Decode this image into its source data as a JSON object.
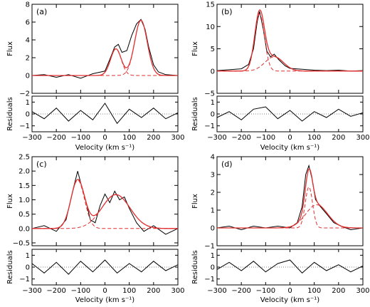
{
  "figure": {
    "panels": [
      "(a)",
      "(b)",
      "(c)",
      "(d)"
    ]
  },
  "chart_data": [
    {
      "type": "line",
      "panel_label": "(a)",
      "xlabel": "Velocity (km s⁻¹)",
      "ylabel": "Flux",
      "residual_ylabel": "Residuals",
      "xlim": [
        -300,
        300
      ],
      "ylim": [
        -2,
        8
      ],
      "residual_ylim": [
        -1.5,
        1.5
      ],
      "x_ticks": [
        "−300",
        "−200",
        "−100",
        "0",
        "100",
        "200",
        "300"
      ],
      "y_ticks": [
        "−2",
        "0",
        "2",
        "4",
        "6",
        "8"
      ],
      "residual_ticks": [
        "−1",
        "0",
        "1"
      ],
      "components": [
        {
          "center": 45,
          "amplitude": 3.0,
          "sigma": 22
        },
        {
          "center": 148,
          "amplitude": 6.2,
          "sigma": 26
        }
      ],
      "observed_flux": {
        "x": [
          -300,
          -250,
          -200,
          -150,
          -100,
          -50,
          0,
          20,
          40,
          55,
          70,
          90,
          110,
          130,
          148,
          165,
          180,
          200,
          220,
          250,
          300
        ],
        "y": [
          0.0,
          0.1,
          -0.2,
          0.1,
          -0.3,
          0.2,
          0.5,
          1.8,
          3.2,
          3.5,
          2.6,
          2.8,
          4.5,
          5.8,
          6.3,
          5.2,
          3.2,
          1.2,
          0.4,
          0.1,
          0.0
        ]
      },
      "residuals": {
        "x": [
          -300,
          -250,
          -200,
          -150,
          -100,
          -50,
          0,
          50,
          100,
          150,
          200,
          250,
          300
        ],
        "y": [
          0.2,
          -0.4,
          0.5,
          -0.6,
          0.3,
          -0.5,
          0.9,
          -0.8,
          0.4,
          -0.3,
          0.5,
          -0.4,
          0.1
        ]
      }
    },
    {
      "type": "line",
      "panel_label": "(b)",
      "xlabel": "Velocity (km s⁻¹)",
      "ylabel": "Flux",
      "residual_ylabel": "Residuals",
      "xlim": [
        -300,
        300
      ],
      "ylim": [
        -5,
        15
      ],
      "residual_ylim": [
        -1.5,
        1.5
      ],
      "x_ticks": [
        "−300",
        "−200",
        "−100",
        "0",
        "100",
        "200",
        "300"
      ],
      "y_ticks": [
        "−5",
        "0",
        "5",
        "10",
        "15"
      ],
      "residual_ticks": [
        "−1",
        "0",
        "1"
      ],
      "components": [
        {
          "center": -125,
          "amplitude": 12.8,
          "sigma": 20
        },
        {
          "center": -65,
          "amplitude": 3.2,
          "sigma": 38
        }
      ],
      "observed_flux": {
        "x": [
          -300,
          -250,
          -200,
          -170,
          -150,
          -135,
          -125,
          -110,
          -95,
          -80,
          -65,
          -45,
          -20,
          0,
          50,
          100,
          150,
          200,
          250,
          300
        ],
        "y": [
          0.1,
          0.3,
          0.5,
          1.5,
          5.0,
          11.0,
          13.4,
          9.5,
          4.5,
          3.2,
          3.8,
          2.5,
          1.2,
          0.6,
          0.4,
          0.2,
          0.1,
          0.2,
          0.0,
          0.1
        ]
      },
      "residuals": {
        "x": [
          -300,
          -250,
          -200,
          -150,
          -100,
          -50,
          0,
          50,
          100,
          150,
          200,
          250,
          300
        ],
        "y": [
          -0.3,
          0.2,
          -0.5,
          0.4,
          0.6,
          -0.4,
          0.3,
          -0.6,
          0.2,
          -0.3,
          0.4,
          -0.2,
          0.1
        ]
      }
    },
    {
      "type": "line",
      "panel_label": "(c)",
      "xlabel": "Velocity (km s⁻¹)",
      "ylabel": "Flux",
      "residual_ylabel": "Residuals",
      "xlim": [
        -300,
        300
      ],
      "ylim": [
        -0.6,
        2.5
      ],
      "residual_ylim": [
        -1.5,
        1.5
      ],
      "x_ticks": [
        "−300",
        "−200",
        "−100",
        "0",
        "100",
        "200",
        "300"
      ],
      "y_ticks": [
        "−0.5",
        "0.0",
        "0.5",
        "1.0",
        "1.5",
        "2.0",
        "2.5"
      ],
      "residual_ticks": [
        "−1",
        "0",
        "1"
      ],
      "components": [
        {
          "center": -112,
          "amplitude": 1.68,
          "sigma": 28
        },
        {
          "center": 45,
          "amplitude": 1.18,
          "sigma": 58
        }
      ],
      "observed_flux": {
        "x": [
          -300,
          -250,
          -200,
          -160,
          -130,
          -112,
          -100,
          -80,
          -60,
          -40,
          -20,
          0,
          20,
          40,
          60,
          80,
          100,
          130,
          160,
          200,
          250,
          300
        ],
        "y": [
          0.0,
          0.1,
          -0.1,
          0.3,
          1.4,
          2.0,
          1.6,
          1.0,
          0.3,
          0.2,
          0.8,
          1.2,
          0.9,
          1.3,
          1.0,
          1.1,
          0.7,
          0.2,
          -0.1,
          0.1,
          -0.2,
          0.0
        ]
      },
      "residuals": {
        "x": [
          -300,
          -250,
          -200,
          -150,
          -100,
          -50,
          0,
          50,
          100,
          150,
          200,
          250,
          300
        ],
        "y": [
          0.3,
          -0.5,
          0.4,
          -0.6,
          0.5,
          -0.4,
          0.6,
          -0.5,
          0.3,
          -0.4,
          0.5,
          -0.3,
          0.2
        ]
      }
    },
    {
      "type": "line",
      "panel_label": "(d)",
      "xlabel": "Velocity (km s⁻¹)",
      "ylabel": "Flux",
      "residual_ylabel": "Residuals",
      "xlim": [
        -300,
        300
      ],
      "ylim": [
        -1,
        4
      ],
      "residual_ylim": [
        -1.5,
        1.5
      ],
      "x_ticks": [
        "−300",
        "−200",
        "−100",
        "0",
        "100",
        "200",
        "300"
      ],
      "y_ticks": [
        "−1",
        "0",
        "1",
        "2",
        "3",
        "4"
      ],
      "residual_ticks": [
        "−1",
        "0",
        "1"
      ],
      "components": [
        {
          "center": 78,
          "amplitude": 2.3,
          "sigma": 15
        },
        {
          "center": 110,
          "amplitude": 1.3,
          "sigma": 45
        }
      ],
      "observed_flux": {
        "x": [
          -300,
          -250,
          -200,
          -150,
          -100,
          -50,
          0,
          30,
          50,
          65,
          78,
          90,
          105,
          125,
          150,
          180,
          210,
          250,
          300
        ],
        "y": [
          0.0,
          0.1,
          -0.1,
          0.1,
          0.0,
          0.1,
          0.0,
          0.3,
          1.2,
          3.0,
          3.5,
          2.8,
          1.6,
          1.2,
          0.8,
          0.3,
          0.1,
          -0.1,
          0.0
        ]
      },
      "residuals": {
        "x": [
          -300,
          -250,
          -200,
          -150,
          -100,
          -50,
          0,
          50,
          100,
          150,
          200,
          250,
          300
        ],
        "y": [
          -0.2,
          0.4,
          -0.3,
          0.5,
          -0.4,
          0.3,
          0.6,
          -0.5,
          0.4,
          -0.3,
          0.2,
          -0.4,
          0.1
        ]
      }
    }
  ]
}
